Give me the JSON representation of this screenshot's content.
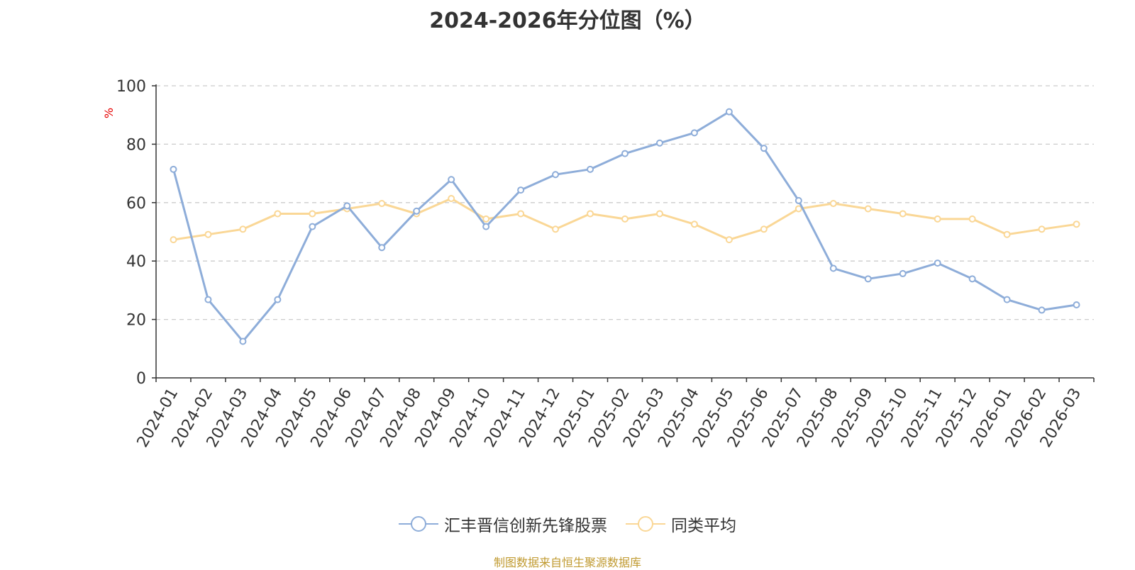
{
  "chart_data": {
    "type": "line",
    "title": "2024-2026年分位图（%）",
    "ylabel": "%",
    "ylim": [
      0,
      100
    ],
    "yticks": [
      0,
      20,
      40,
      60,
      80,
      100
    ],
    "grid": true,
    "legend_position": "bottom-center",
    "categories": [
      "2024-01",
      "2024-02",
      "2024-03",
      "2024-04",
      "2024-05",
      "2024-06",
      "2024-07",
      "2024-08",
      "2024-09",
      "2024-10",
      "2024-11",
      "2024-12",
      "2025-01",
      "2025-02",
      "2025-03",
      "2025-04",
      "2025-05",
      "2025-06",
      "2025-07",
      "2025-08",
      "2025-09",
      "2025-10",
      "2025-11",
      "2025-12",
      "2026-01",
      "2026-02",
      "2026-03"
    ],
    "series": [
      {
        "name": "汇丰晋信创新先锋股票",
        "color": "#8eadd9",
        "values": [
          71.4,
          26.8,
          12.5,
          26.8,
          51.8,
          58.9,
          44.6,
          57.1,
          67.9,
          51.8,
          64.3,
          69.6,
          71.4,
          76.8,
          80.4,
          83.9,
          91.1,
          78.6,
          60.7,
          37.5,
          33.9,
          35.7,
          39.3,
          33.9,
          26.8,
          23.2,
          25.0
        ]
      },
      {
        "name": "同类平均",
        "color": "#fad796",
        "values": [
          47.3,
          49.1,
          50.9,
          56.2,
          56.2,
          57.9,
          59.7,
          56.2,
          61.4,
          54.4,
          56.2,
          50.9,
          56.2,
          54.4,
          56.2,
          52.6,
          47.3,
          50.9,
          57.9,
          59.7,
          57.9,
          56.2,
          54.4,
          54.4,
          49.1,
          50.9,
          52.6
        ]
      }
    ]
  },
  "source_note": "制图数据来自恒生聚源数据库"
}
